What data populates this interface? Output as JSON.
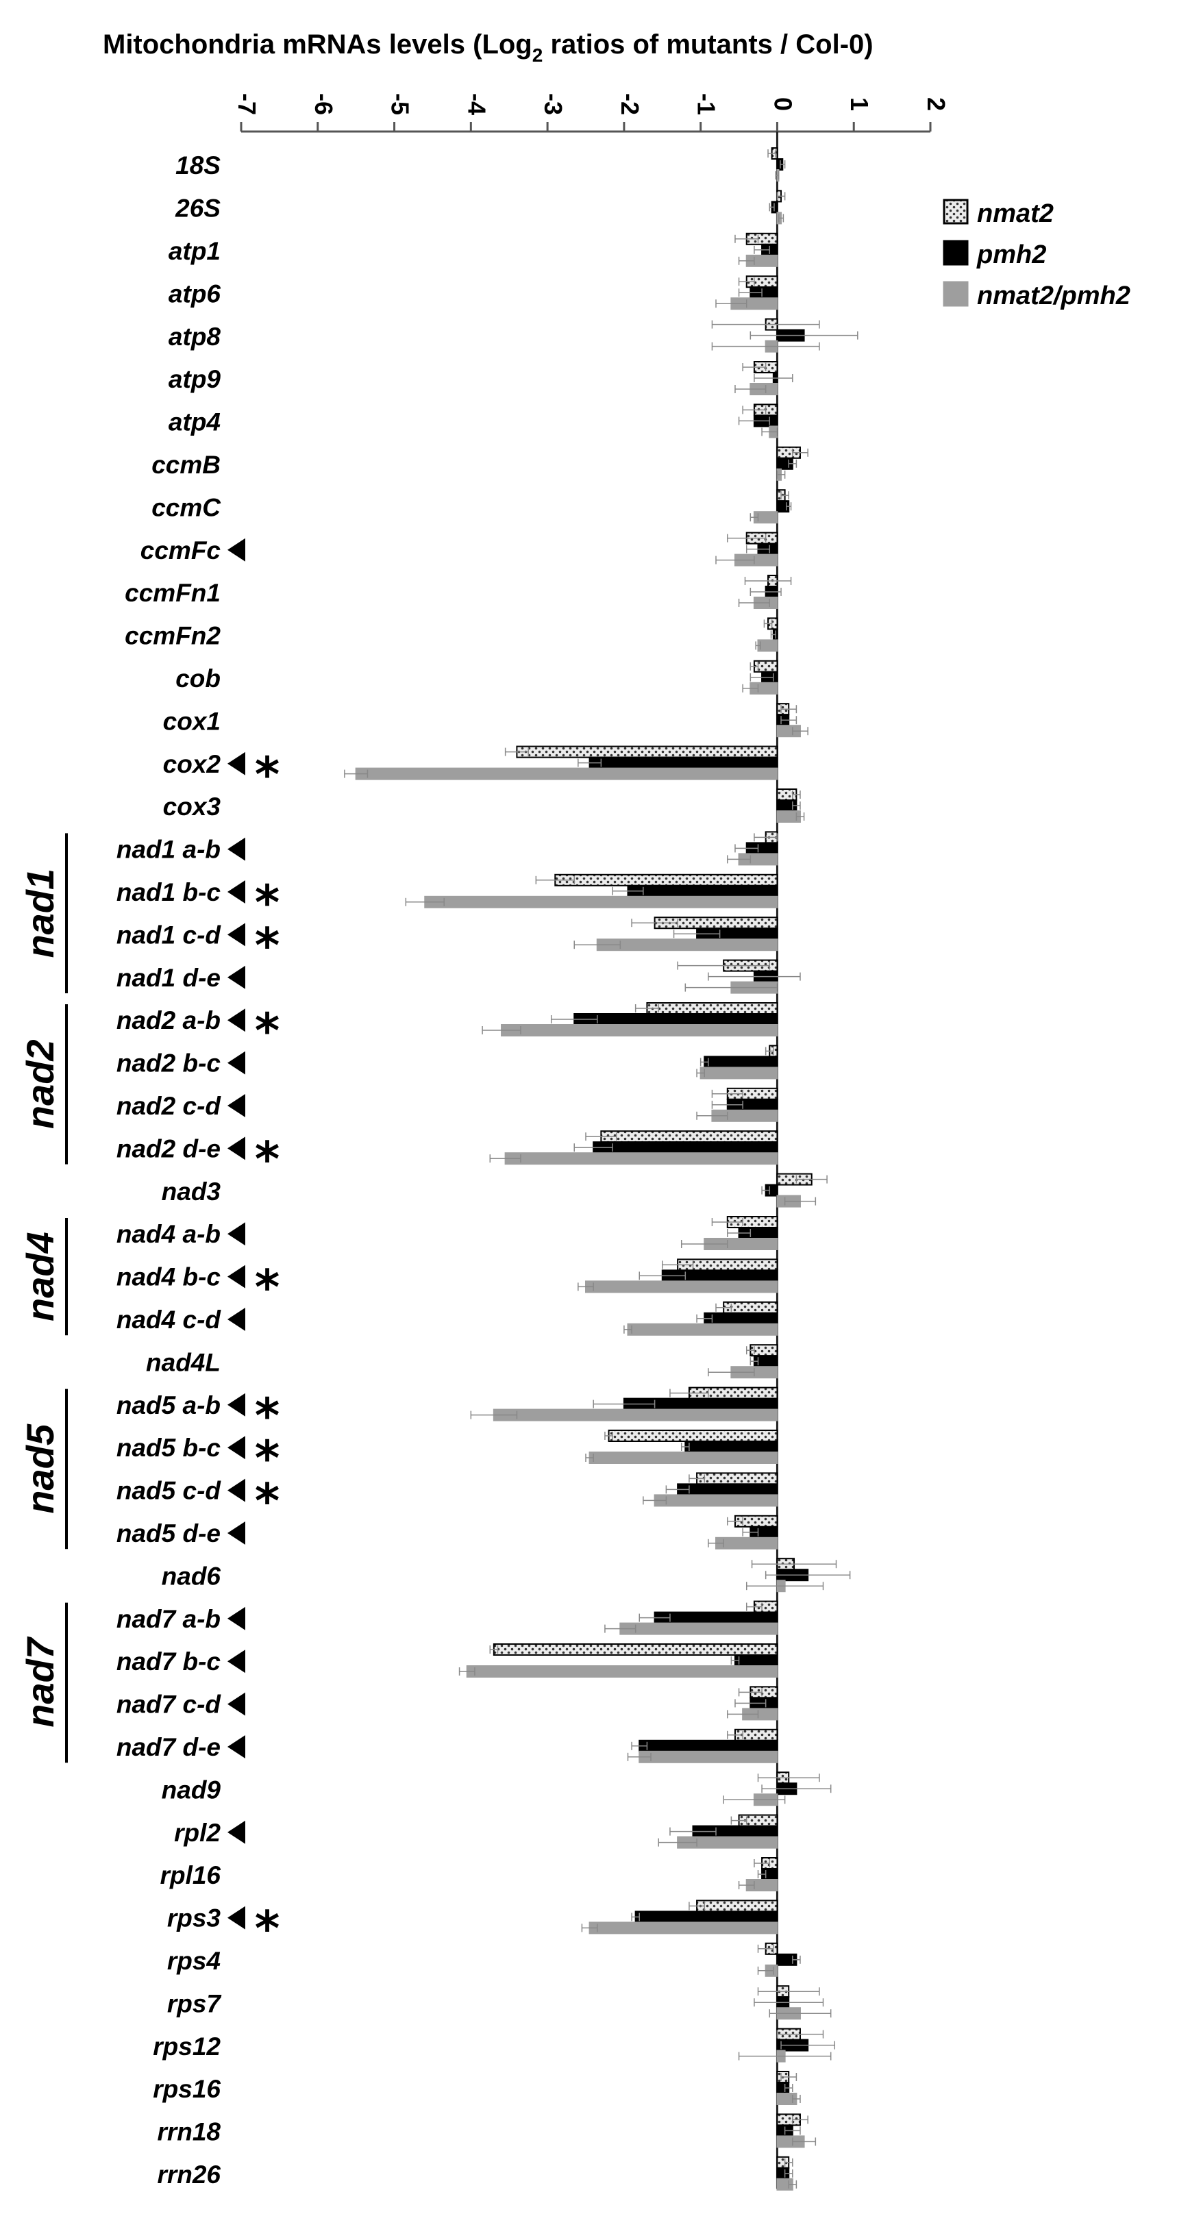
{
  "chart_data": {
    "type": "bar",
    "orientation": "horizontal",
    "title": "Mitochondria  mRNAs levels (Log",
    "title_sub": "2",
    "title_end": " ratios of mutants / Col-0)",
    "xlim": [
      -7,
      2
    ],
    "x_ticks": [
      "-7",
      "-6",
      "-5",
      "-4",
      "-3",
      "-2",
      "-1",
      "0",
      "1",
      "2"
    ],
    "legend_position": "top-right",
    "colors": {
      "nmat2": "#e8e8e8",
      "pmh2": "#000000",
      "nmat2_pmh2": "#9e9e9e"
    },
    "categories": [
      "18S",
      "26S",
      "atp1",
      "atp6",
      "atp8",
      "atp9",
      "atp4",
      "ccmB",
      "ccmC",
      "ccmFc",
      "ccmFn1",
      "ccmFn2",
      "cob",
      "cox1",
      "cox2",
      "cox3",
      "nad1 a-b",
      "nad1 b-c",
      "nad1 c-d",
      "nad1 d-e",
      "nad2 a-b",
      "nad2 b-c",
      "nad2 c-d",
      "nad2 d-e",
      "nad3",
      "nad4 a-b",
      "nad4 b-c",
      "nad4 c-d",
      "nad4L",
      "nad5 a-b",
      "nad5 b-c",
      "nad5 c-d",
      "nad5 d-e",
      "nad6",
      "nad7 a-b",
      "nad7 b-c",
      "nad7 c-d",
      "nad7 d-e",
      "nad9",
      "rpl2",
      "rpl16",
      "rps3",
      "rps4",
      "rps7",
      "rps12",
      "rps16",
      "rrn18",
      "rrn26"
    ],
    "arrow_marked": [
      "ccmFc",
      "cox2",
      "nad1 a-b",
      "nad1 b-c",
      "nad1 c-d",
      "nad1 d-e",
      "nad2 a-b",
      "nad2 b-c",
      "nad2 c-d",
      "nad2 d-e",
      "nad4 a-b",
      "nad4 b-c",
      "nad4 c-d",
      "nad5 a-b",
      "nad5 b-c",
      "nad5 c-d",
      "nad5 d-e",
      "nad7 a-b",
      "nad7 b-c",
      "nad7 c-d",
      "nad7 d-e",
      "rpl2",
      "rps3"
    ],
    "star_marked": [
      "cox2",
      "nad1 b-c",
      "nad1 c-d",
      "nad2 a-b",
      "nad2 d-e",
      "nad4 b-c",
      "nad5 a-b",
      "nad5 b-c",
      "nad5 c-d",
      "rps3"
    ],
    "star_symbol": "*",
    "groups": [
      {
        "label": "nad1",
        "from": "nad1 a-b",
        "to": "nad1 d-e"
      },
      {
        "label": "nad2",
        "from": "nad2 a-b",
        "to": "nad2 d-e"
      },
      {
        "label": "nad4",
        "from": "nad4 a-b",
        "to": "nad4 c-d"
      },
      {
        "label": "nad5",
        "from": "nad5 a-b",
        "to": "nad5 d-e"
      },
      {
        "label": "nad7",
        "from": "nad7 a-b",
        "to": "nad7 d-e"
      }
    ],
    "series": [
      {
        "name": "nmat2",
        "key": "nmat2",
        "values": [
          -0.07,
          0.05,
          -0.4,
          -0.4,
          -0.15,
          -0.3,
          -0.3,
          0.3,
          0.1,
          -0.4,
          -0.12,
          -0.12,
          -0.3,
          0.15,
          -3.4,
          0.25,
          -0.15,
          -2.9,
          -1.6,
          -0.7,
          -1.7,
          -0.1,
          -0.65,
          -2.3,
          0.45,
          -0.65,
          -1.3,
          -0.7,
          -0.35,
          -1.15,
          -2.2,
          -1.05,
          -0.55,
          0.22,
          -0.3,
          -3.7,
          -0.35,
          -0.55,
          0.15,
          -0.5,
          -0.2,
          -1.05,
          -0.15,
          0.15,
          0.3,
          0.15,
          0.3,
          0.15
        ],
        "errors": [
          0.05,
          0.05,
          0.15,
          0.1,
          0.7,
          0.15,
          0.15,
          0.1,
          0.05,
          0.25,
          0.3,
          0.05,
          0.05,
          0.1,
          0.15,
          0.05,
          0.15,
          0.25,
          0.3,
          0.6,
          0.15,
          0.05,
          0.2,
          0.2,
          0.2,
          0.2,
          0.2,
          0.1,
          0.05,
          0.25,
          0.05,
          0.1,
          0.1,
          0.55,
          0.1,
          0.05,
          0.15,
          0.1,
          0.4,
          0.1,
          0.1,
          0.1,
          0.1,
          0.4,
          0.3,
          0.1,
          0.1,
          0.05
        ]
      },
      {
        "name": "pmh2",
        "key": "pmh2",
        "values": [
          0.07,
          -0.07,
          -0.2,
          -0.35,
          0.35,
          -0.05,
          -0.3,
          0.2,
          0.15,
          -0.25,
          -0.15,
          -0.05,
          -0.2,
          0.15,
          -2.45,
          0.25,
          -0.4,
          -1.95,
          -1.05,
          -0.3,
          -2.65,
          -0.95,
          -0.65,
          -2.4,
          -0.15,
          -0.5,
          -1.5,
          -0.95,
          -0.3,
          -2.0,
          -1.2,
          -1.3,
          -0.35,
          0.4,
          -1.6,
          -0.55,
          -0.35,
          -1.8,
          0.25,
          -1.1,
          -0.2,
          -1.85,
          0.25,
          0.15,
          0.4,
          0.15,
          0.2,
          0.15
        ],
        "errors": [
          0.03,
          0.03,
          0.1,
          0.15,
          0.7,
          0.25,
          0.2,
          0.05,
          0.03,
          0.15,
          0.2,
          0.03,
          0.15,
          0.1,
          0.15,
          0.05,
          0.15,
          0.2,
          0.3,
          0.6,
          0.3,
          0.05,
          0.2,
          0.25,
          0.05,
          0.15,
          0.3,
          0.1,
          0.05,
          0.4,
          0.05,
          0.15,
          0.1,
          0.55,
          0.2,
          0.05,
          0.2,
          0.1,
          0.45,
          0.3,
          0.05,
          0.05,
          0.05,
          0.45,
          0.35,
          0.05,
          0.1,
          0.05
        ]
      },
      {
        "name": "nmat2/pmh2",
        "key": "nmat2_pmh2",
        "values": [
          0.0,
          0.05,
          -0.4,
          -0.6,
          -0.15,
          -0.35,
          -0.1,
          0.05,
          -0.3,
          -0.55,
          -0.3,
          -0.25,
          -0.35,
          0.3,
          -5.5,
          0.3,
          -0.5,
          -4.6,
          -2.35,
          -0.6,
          -3.6,
          -1.0,
          -0.85,
          -3.55,
          0.3,
          -0.95,
          -2.5,
          -1.95,
          -0.6,
          -3.7,
          -2.45,
          -1.6,
          -0.8,
          0.1,
          -2.05,
          -4.05,
          -0.45,
          -1.8,
          -0.3,
          -1.3,
          -0.4,
          -2.45,
          -0.15,
          0.3,
          0.1,
          0.25,
          0.35,
          0.2
        ],
        "errors": [
          0.02,
          0.03,
          0.1,
          0.2,
          0.7,
          0.2,
          0.1,
          0.05,
          0.05,
          0.25,
          0.2,
          0.03,
          0.1,
          0.1,
          0.15,
          0.05,
          0.15,
          0.25,
          0.3,
          0.6,
          0.25,
          0.05,
          0.2,
          0.2,
          0.2,
          0.3,
          0.1,
          0.05,
          0.3,
          0.3,
          0.05,
          0.15,
          0.1,
          0.5,
          0.2,
          0.1,
          0.2,
          0.15,
          0.4,
          0.25,
          0.1,
          0.1,
          0.1,
          0.4,
          0.6,
          0.05,
          0.15,
          0.05
        ]
      }
    ]
  }
}
